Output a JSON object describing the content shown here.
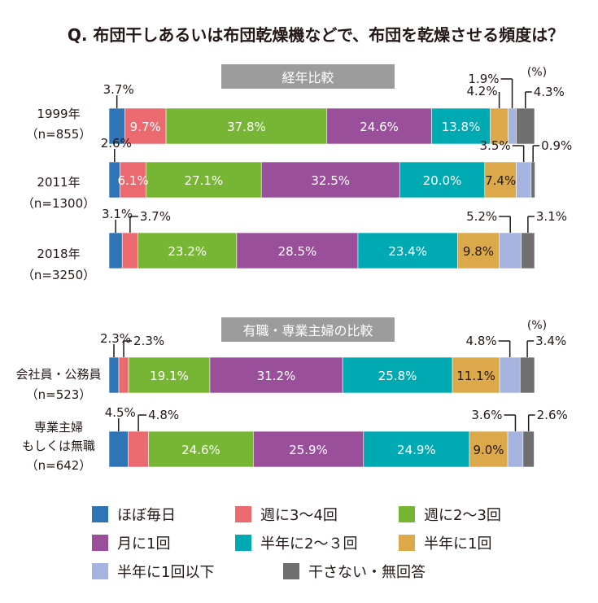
{
  "question": "Q. 布団干しあるいは布団乾燥機などで、布団を乾燥させる頻度は？",
  "unit": "(%)",
  "panels": [
    {
      "header": "経年比較",
      "unit_shown": true
    },
    {
      "header": "有職・専業主婦の比較",
      "unit_shown": true
    }
  ],
  "colors": [
    "#2f74b5",
    "#ea6a6f",
    "#77b534",
    "#9a4f9b",
    "#00aab3",
    "#dba84a",
    "#a5b4de",
    "#6f6f6f"
  ],
  "legend": [
    "ほぼ毎日",
    "週に3～4回",
    "週に2～3回",
    "月に1回",
    "半年に2～３回",
    "半年に1回",
    "半年に1回以下",
    "干さない・無回答"
  ],
  "chart_data": {
    "type": "bar",
    "orientation": "horizontal",
    "stacked": true,
    "xlim": [
      0,
      100
    ],
    "series": [
      {
        "name": "ほぼ毎日",
        "values": [
          3.7,
          2.6,
          3.1,
          2.3,
          4.5
        ]
      },
      {
        "name": "週に3～4回",
        "values": [
          9.7,
          6.1,
          3.7,
          2.3,
          4.8
        ]
      },
      {
        "name": "週に2～3回",
        "values": [
          37.8,
          27.1,
          23.2,
          19.1,
          24.6
        ]
      },
      {
        "name": "月に1回",
        "values": [
          24.6,
          32.5,
          28.5,
          31.2,
          25.9
        ]
      },
      {
        "name": "半年に2～３回",
        "values": [
          13.8,
          20.0,
          23.4,
          25.8,
          24.9
        ]
      },
      {
        "name": "半年に1回",
        "values": [
          4.2,
          7.4,
          9.8,
          11.1,
          9.0
        ]
      },
      {
        "name": "半年に1回以下",
        "values": [
          1.9,
          3.5,
          5.2,
          4.8,
          3.6
        ]
      },
      {
        "name": "干さない・無回答",
        "values": [
          4.3,
          0.9,
          3.1,
          3.4,
          2.6
        ]
      }
    ],
    "rows": [
      {
        "label": [
          "1999年",
          "（n=855）"
        ],
        "panel": 0,
        "labels": [
          "3.7%",
          "9.7%",
          "37.8%",
          "24.6%",
          "13.8%",
          "4.2%",
          "1.9%",
          "4.3%"
        ]
      },
      {
        "label": [
          "2011年",
          "（n=1300）"
        ],
        "panel": 0,
        "labels": [
          "2.6%",
          "6.1%",
          "27.1%",
          "32.5%",
          "20.0%",
          "7.4%",
          "3.5%",
          "0.9%"
        ]
      },
      {
        "label": [
          "2018年",
          "（n=3250）"
        ],
        "panel": 0,
        "labels": [
          "3.1%",
          "3.7%",
          "23.2%",
          "28.5%",
          "23.4%",
          "9.8%",
          "5.2%",
          "3.1%"
        ]
      },
      {
        "label": [
          "会社員・公務員",
          "（n=523）"
        ],
        "panel": 1,
        "labels": [
          "2.3%",
          "2.3%",
          "19.1%",
          "31.2%",
          "25.8%",
          "11.1%",
          "4.8%",
          "3.4%"
        ]
      },
      {
        "label": [
          "専業主婦",
          "もしくは無職",
          "（n=642）"
        ],
        "panel": 1,
        "labels": [
          "4.5%",
          "4.8%",
          "24.6%",
          "25.9%",
          "24.9%",
          "9.0%",
          "3.6%",
          "2.6%"
        ]
      }
    ]
  }
}
